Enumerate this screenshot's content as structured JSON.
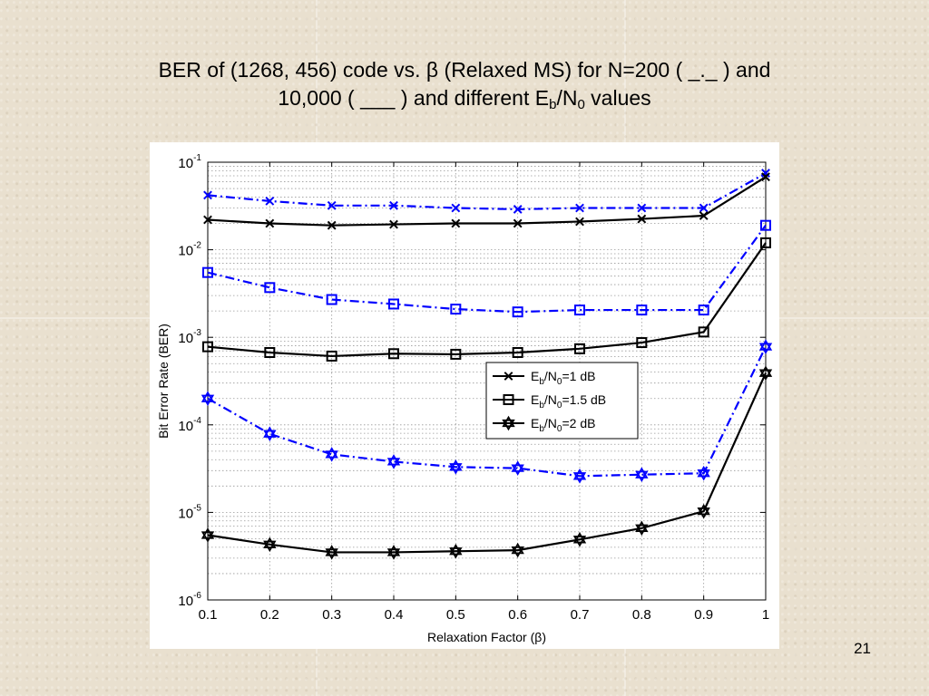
{
  "slide": {
    "title_line1": "BER of (1268, 456) code vs. β (Relaxed MS) for N=200 (  _._ ) and",
    "title_line2_pre": "10,000 ( ___ ) and different E",
    "title_sub_b": "b",
    "title_slash_n": "/N",
    "title_sub_0": "0",
    "title_line2_post": " values",
    "page_number": "21"
  },
  "colors": {
    "n200": "#0000ff",
    "n10000": "#000000"
  },
  "chart_data": {
    "type": "line",
    "xlabel": "Relaxation Factor (β)",
    "ylabel": "Bit Error Rate (BER)",
    "y_scale": "log",
    "xlim": [
      0.1,
      1
    ],
    "ylim": [
      1e-06,
      0.1
    ],
    "grid": true,
    "legend_position": "center-right",
    "x": [
      0.1,
      0.2,
      0.3,
      0.4,
      0.5,
      0.6,
      0.7,
      0.8,
      0.9,
      1
    ],
    "x_tick_labels": [
      "0.1",
      "0.2",
      "0.3",
      "0.4",
      "0.5",
      "0.6",
      "0.7",
      "0.8",
      "0.9",
      "1"
    ],
    "y_tick_labels": [
      {
        "base": "10",
        "exp": "-1"
      },
      {
        "base": "10",
        "exp": "-2"
      },
      {
        "base": "10",
        "exp": "-3"
      },
      {
        "base": "10",
        "exp": "-4"
      },
      {
        "base": "10",
        "exp": "-5"
      },
      {
        "base": "10",
        "exp": "-6"
      }
    ],
    "legend": [
      {
        "pre": "E",
        "sub1": "b",
        "mid": "/N",
        "sub2": "0",
        "post": "=1 dB",
        "marker": "x"
      },
      {
        "pre": "E",
        "sub1": "b",
        "mid": "/N",
        "sub2": "0",
        "post": "=1.5 dB",
        "marker": "square"
      },
      {
        "pre": "E",
        "sub1": "b",
        "mid": "/N",
        "sub2": "0",
        "post": "=2 dB",
        "marker": "hexagram"
      }
    ],
    "series": [
      {
        "ebn0": "1 dB",
        "N": "200",
        "marker": "x",
        "style": "dashdot",
        "color": "#0000ff",
        "values": [
          0.042,
          0.036,
          0.032,
          0.032,
          0.03,
          0.029,
          0.03,
          0.03,
          0.03,
          0.075
        ]
      },
      {
        "ebn0": "1 dB",
        "N": "10,000",
        "marker": "x",
        "style": "solid",
        "color": "#000000",
        "values": [
          0.022,
          0.02,
          0.019,
          0.0195,
          0.02,
          0.02,
          0.021,
          0.0225,
          0.0245,
          0.068
        ]
      },
      {
        "ebn0": "1.5 dB",
        "N": "200",
        "marker": "square",
        "style": "dashdot",
        "color": "#0000ff",
        "values": [
          0.0055,
          0.0037,
          0.0027,
          0.0024,
          0.0021,
          0.00195,
          0.00205,
          0.00205,
          0.00205,
          0.019
        ]
      },
      {
        "ebn0": "1.5 dB",
        "N": "10,000",
        "marker": "square",
        "style": "solid",
        "color": "#000000",
        "values": [
          0.00078,
          0.00067,
          0.00061,
          0.00065,
          0.00064,
          0.00067,
          0.00074,
          0.00087,
          0.00115,
          0.012
        ]
      },
      {
        "ebn0": "2 dB",
        "N": "200",
        "marker": "hexagram",
        "style": "dashdot",
        "color": "#0000ff",
        "values": [
          0.0002,
          7.9e-05,
          4.6e-05,
          3.8e-05,
          3.3e-05,
          3.2e-05,
          2.6e-05,
          2.7e-05,
          2.8e-05,
          0.00078
        ]
      },
      {
        "ebn0": "2 dB",
        "N": "10,000",
        "marker": "hexagram",
        "style": "solid",
        "color": "#000000",
        "values": [
          5.5e-06,
          4.3e-06,
          3.5e-06,
          3.5e-06,
          3.6e-06,
          3.7e-06,
          4.9e-06,
          6.6e-06,
          1.03e-05,
          0.00039
        ]
      }
    ]
  }
}
